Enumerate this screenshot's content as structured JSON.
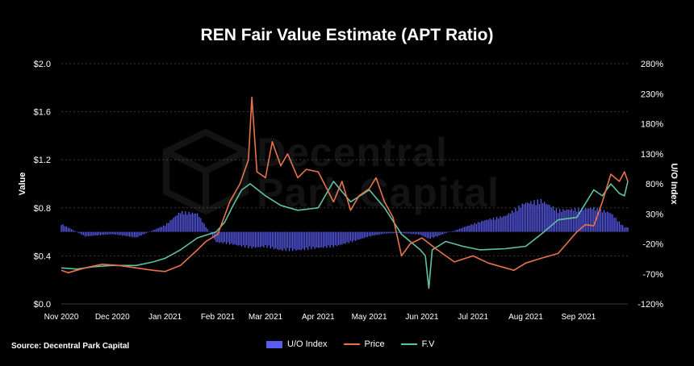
{
  "title": "REN Fair Value Estimate (APT Ratio)",
  "source": "Source: Decentral Park Capital",
  "watermark": {
    "line1": "Decentral",
    "line2": "Park Capital"
  },
  "colors": {
    "background": "#000000",
    "uo_index": "#5b5cf0",
    "price": "#e8734a",
    "fv": "#5ec4a0",
    "grid": "#3a3a3a",
    "text": "#ffffff"
  },
  "legend": {
    "uo_index": "U/O Index",
    "price": "Price",
    "fv": "F.V"
  },
  "chart_data": {
    "type": "line",
    "title": "REN Fair Value Estimate (APT Ratio)",
    "x_ticks": [
      "Nov 2020",
      "Dec 2020",
      "Jan 2021",
      "Feb 2021",
      "Mar 2021",
      "Apr 2021",
      "May 2021",
      "Jun 2021",
      "Jul 2021",
      "Aug 2021",
      "Sep 2021"
    ],
    "x_range": [
      "2020-11-01",
      "2021-09-30"
    ],
    "left_axis": {
      "label": "Value",
      "ticks": [
        "$0.0",
        "$0.4",
        "$0.8",
        "$1.2",
        "$1.6",
        "$2.0"
      ],
      "min": 0,
      "max": 2
    },
    "right_axis": {
      "label": "U/O Index",
      "ticks": [
        "-120%",
        "-70%",
        "-20%",
        "30%",
        "80%",
        "130%",
        "180%",
        "230%",
        "280%"
      ],
      "min": -120,
      "max": 280
    },
    "grid": true,
    "legend_position": "bottom",
    "series": [
      {
        "name": "U/O Index",
        "kind": "bar",
        "axis": "right",
        "x": [
          "2020-11-01",
          "2020-11-15",
          "2020-12-01",
          "2020-12-15",
          "2021-01-01",
          "2021-01-10",
          "2021-01-20",
          "2021-01-31",
          "2021-02-10",
          "2021-02-20",
          "2021-03-01",
          "2021-03-10",
          "2021-03-20",
          "2021-04-01",
          "2021-04-10",
          "2021-04-20",
          "2021-05-01",
          "2021-05-10",
          "2021-05-20",
          "2021-05-31",
          "2021-06-05",
          "2021-06-10",
          "2021-06-15",
          "2021-06-20",
          "2021-07-01",
          "2021-07-10",
          "2021-07-20",
          "2021-07-31",
          "2021-08-10",
          "2021-08-20",
          "2021-08-31",
          "2021-09-10",
          "2021-09-20",
          "2021-09-28"
        ],
        "values": [
          14,
          -8,
          -4,
          -10,
          12,
          35,
          32,
          -18,
          -22,
          -28,
          -26,
          -32,
          -32,
          -28,
          -26,
          -18,
          -8,
          -3,
          -2,
          -5,
          -12,
          -8,
          -2,
          2,
          14,
          22,
          28,
          50,
          55,
          38,
          40,
          42,
          33,
          8
        ]
      },
      {
        "name": "Price",
        "kind": "line",
        "axis": "left",
        "x": [
          "2020-11-01",
          "2020-11-05",
          "2020-11-15",
          "2020-11-25",
          "2020-12-05",
          "2020-12-15",
          "2020-12-25",
          "2021-01-01",
          "2021-01-10",
          "2021-01-20",
          "2021-01-25",
          "2021-02-01",
          "2021-02-08",
          "2021-02-14",
          "2021-02-19",
          "2021-02-21",
          "2021-02-24",
          "2021-03-01",
          "2021-03-05",
          "2021-03-10",
          "2021-03-14",
          "2021-03-20",
          "2021-03-25",
          "2021-04-01",
          "2021-04-10",
          "2021-04-15",
          "2021-04-20",
          "2021-04-25",
          "2021-05-01",
          "2021-05-05",
          "2021-05-10",
          "2021-05-15",
          "2021-05-20",
          "2021-05-25",
          "2021-06-01",
          "2021-06-10",
          "2021-06-20",
          "2021-07-01",
          "2021-07-10",
          "2021-07-20",
          "2021-07-25",
          "2021-08-01",
          "2021-08-10",
          "2021-08-20",
          "2021-08-31",
          "2021-09-05",
          "2021-09-10",
          "2021-09-15",
          "2021-09-20",
          "2021-09-25",
          "2021-09-28",
          "2021-09-30"
        ],
        "values": [
          0.28,
          0.26,
          0.3,
          0.33,
          0.32,
          0.3,
          0.28,
          0.27,
          0.32,
          0.45,
          0.52,
          0.58,
          0.85,
          1.0,
          1.2,
          1.72,
          1.1,
          1.05,
          1.35,
          1.15,
          1.25,
          1.05,
          1.12,
          1.1,
          0.85,
          1.02,
          0.78,
          0.9,
          0.96,
          1.05,
          0.85,
          0.72,
          0.4,
          0.5,
          0.55,
          0.45,
          0.35,
          0.4,
          0.34,
          0.3,
          0.28,
          0.34,
          0.38,
          0.42,
          0.6,
          0.66,
          0.65,
          0.85,
          1.08,
          1.02,
          1.1,
          1.02
        ]
      },
      {
        "name": "F.V",
        "kind": "line",
        "axis": "left",
        "x": [
          "2020-11-01",
          "2020-11-10",
          "2020-11-20",
          "2020-12-01",
          "2020-12-15",
          "2020-12-25",
          "2021-01-01",
          "2021-01-10",
          "2021-01-20",
          "2021-01-31",
          "2021-02-05",
          "2021-02-10",
          "2021-02-15",
          "2021-02-20",
          "2021-03-01",
          "2021-03-10",
          "2021-03-20",
          "2021-04-01",
          "2021-04-10",
          "2021-04-20",
          "2021-05-01",
          "2021-05-10",
          "2021-05-20",
          "2021-05-31",
          "2021-06-03",
          "2021-06-05",
          "2021-06-07",
          "2021-06-15",
          "2021-06-25",
          "2021-07-05",
          "2021-07-20",
          "2021-08-01",
          "2021-08-10",
          "2021-08-20",
          "2021-08-31",
          "2021-09-10",
          "2021-09-15",
          "2021-09-20",
          "2021-09-25",
          "2021-09-28",
          "2021-09-30"
        ],
        "values": [
          0.3,
          0.29,
          0.31,
          0.32,
          0.32,
          0.35,
          0.38,
          0.45,
          0.55,
          0.6,
          0.68,
          0.82,
          0.95,
          1.0,
          0.9,
          0.82,
          0.78,
          0.8,
          1.02,
          0.85,
          0.95,
          0.8,
          0.58,
          0.45,
          0.4,
          0.13,
          0.45,
          0.52,
          0.48,
          0.45,
          0.46,
          0.48,
          0.58,
          0.7,
          0.72,
          0.95,
          0.9,
          1.0,
          0.92,
          0.9,
          1.02
        ]
      }
    ]
  }
}
